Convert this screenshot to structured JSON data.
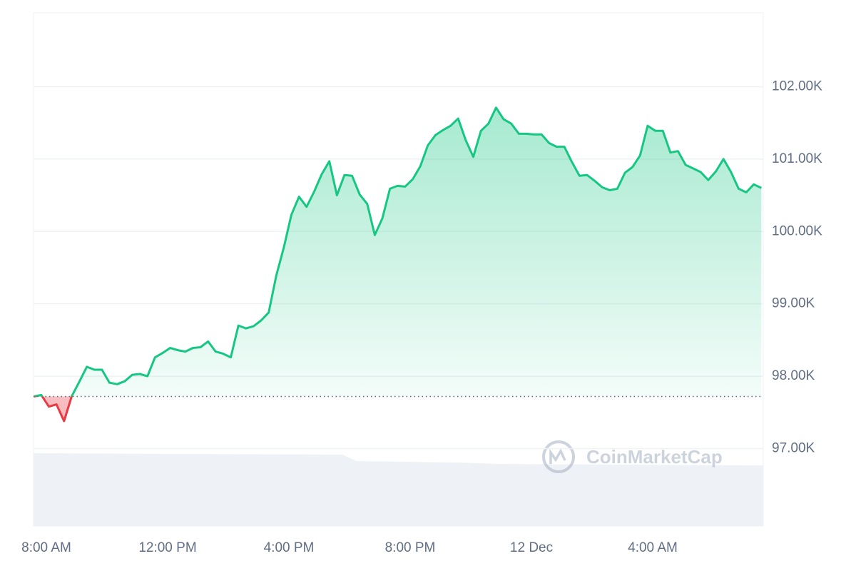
{
  "chart_data": {
    "type": "line",
    "watermark": "CoinMarketCap",
    "x": [
      -25,
      -10,
      5,
      20,
      35,
      50,
      65,
      80,
      95,
      110,
      125,
      140,
      155,
      170,
      185,
      200,
      215,
      230,
      245,
      260,
      275,
      290,
      305,
      320,
      335,
      350,
      365,
      380,
      395,
      410,
      425,
      440,
      455,
      470,
      485,
      500,
      515,
      530,
      545,
      560,
      575,
      590,
      605,
      620,
      635,
      650,
      665,
      680,
      695,
      710,
      725,
      740,
      755,
      770,
      785,
      800,
      815,
      830,
      845,
      860,
      875,
      890,
      905,
      920,
      935,
      950,
      965,
      980,
      995,
      1010,
      1025,
      1040,
      1055,
      1070,
      1085,
      1100,
      1115,
      1130,
      1145,
      1160,
      1175,
      1190,
      1205,
      1220,
      1235,
      1250,
      1265,
      1280,
      1295,
      1310,
      1325,
      1340,
      1355,
      1370,
      1385,
      1400,
      1415
    ],
    "values": [
      97720,
      97740,
      97580,
      97610,
      97380,
      97720,
      97920,
      98130,
      98090,
      98090,
      97910,
      97890,
      97930,
      98020,
      98030,
      98000,
      98260,
      98320,
      98390,
      98360,
      98340,
      98390,
      98400,
      98480,
      98340,
      98310,
      98260,
      98700,
      98660,
      98690,
      98770,
      98880,
      99390,
      99780,
      100230,
      100480,
      100340,
      100550,
      100790,
      100970,
      100500,
      100780,
      100770,
      100510,
      100380,
      99950,
      100180,
      100590,
      100630,
      100620,
      100720,
      100900,
      101190,
      101330,
      101400,
      101460,
      101560,
      101260,
      101030,
      101390,
      101490,
      101710,
      101550,
      101490,
      101350,
      101350,
      101340,
      101340,
      101220,
      101170,
      101170,
      100960,
      100770,
      100780,
      100700,
      100610,
      100570,
      100590,
      100810,
      100890,
      101050,
      101460,
      101390,
      101390,
      101090,
      101110,
      100920,
      100870,
      100820,
      100710,
      100830,
      101000,
      100820,
      100590,
      100540,
      100650,
      100600
    ],
    "baseline": 97720,
    "up_color": "#16c784",
    "down_color": "#ea3943",
    "xlim": [
      -25.4,
      1418.8
    ],
    "xticks": [
      {
        "value": 0,
        "label": "8:00 AM"
      },
      {
        "value": 240,
        "label": "12:00 PM"
      },
      {
        "value": 480,
        "label": "4:00 PM"
      },
      {
        "value": 720,
        "label": "8:00 PM"
      },
      {
        "value": 960,
        "label": "12 Dec"
      },
      {
        "value": 1200,
        "label": "4:00 AM"
      }
    ],
    "ylim": [
      95930,
      103020
    ],
    "yticks": [
      {
        "value": 97000,
        "label": "97.00K"
      },
      {
        "value": 98000,
        "label": "98.00K"
      },
      {
        "value": 99000,
        "label": "99.00K"
      },
      {
        "value": 100000,
        "label": "100.00K"
      },
      {
        "value": 101000,
        "label": "101.00K"
      },
      {
        "value": 102000,
        "label": "102.00K"
      }
    ],
    "grid": true
  }
}
